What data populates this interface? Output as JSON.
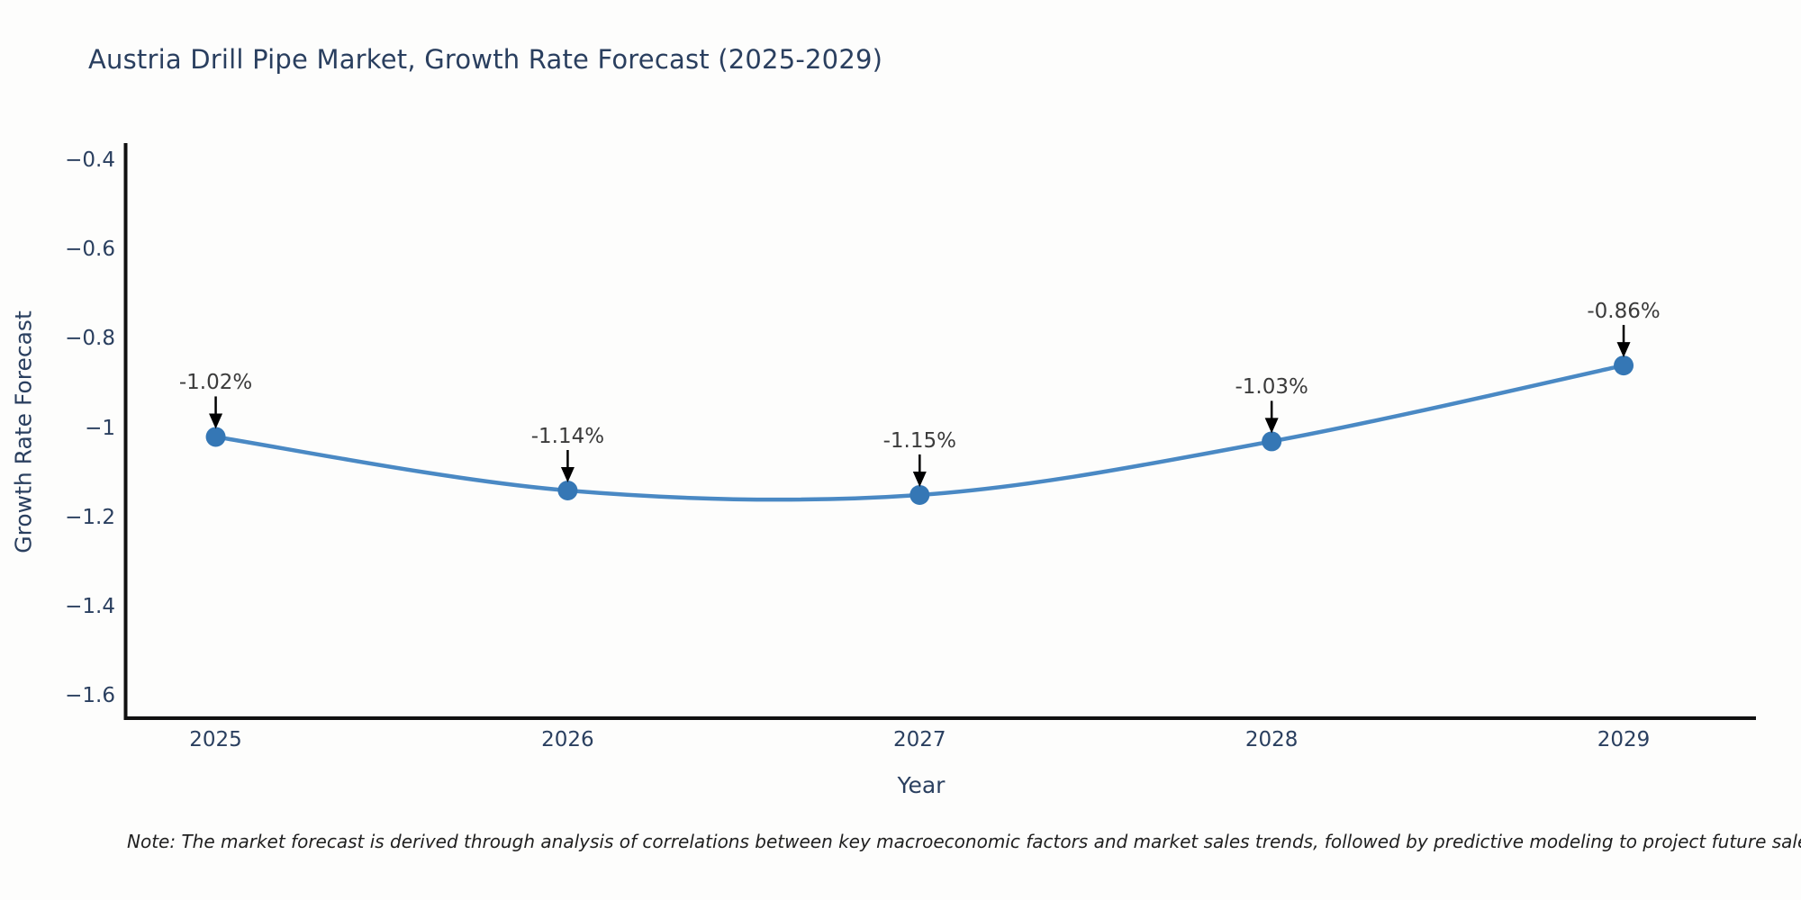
{
  "title": "Austria Drill Pipe Market, Growth Rate Forecast (2025-2029)",
  "note": "Note: The market forecast is derived through analysis of correlations between key macroeconomic factors and market sales trends, followed by predictive modeling to project future sales.",
  "chart_data": {
    "type": "line",
    "title": "Austria Drill Pipe Market, Growth Rate Forecast (2025-2029)",
    "xlabel": "Year",
    "ylabel": "Growth Rate Forecast",
    "x": [
      2025,
      2026,
      2027,
      2028,
      2029
    ],
    "values": [
      -1.02,
      -1.14,
      -1.15,
      -1.03,
      -0.86
    ],
    "point_labels": [
      "-1.02%",
      "-1.14%",
      "-1.15%",
      "-1.03%",
      "-0.86%"
    ],
    "xtick_labels": [
      "2025",
      "2026",
      "2027",
      "2028",
      "2029"
    ],
    "ytick_values": [
      -0.4,
      -0.6,
      -0.8,
      -1.0,
      -1.2,
      -1.4,
      -1.6
    ],
    "ytick_labels": [
      "−0.4",
      "−0.6",
      "−0.8",
      "−1",
      "−1.2",
      "−1.4",
      "−1.6"
    ],
    "xlim": [
      2024.744,
      2029.376
    ],
    "ylim": [
      -1.654,
      -0.362
    ],
    "grid": false,
    "legend": false,
    "line_shape": "spline",
    "line_color": "#4a89c4",
    "marker_color": "#3577b5",
    "axis_color": "#111111",
    "arrow_color": "#000000"
  }
}
